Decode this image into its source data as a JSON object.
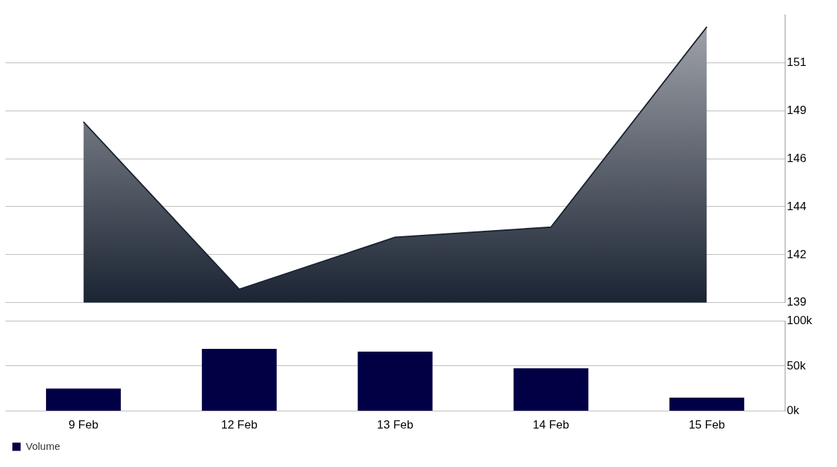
{
  "chart_data": [
    {
      "type": "area",
      "categories": [
        null,
        null,
        null,
        null,
        null
      ],
      "series": [
        {
          "color": "#1b2433",
          "values": [
            148.25,
            140.06,
            142.6,
            143.1,
            152.9
          ]
        }
      ],
      "ylim": [
        139.4,
        153.5
      ],
      "yticks": [
        {
          "value": 139.4,
          "label": "139"
        },
        {
          "value": 141.75,
          "label": "142"
        },
        {
          "value": 144.1,
          "label": "144"
        },
        {
          "value": 146.45,
          "label": "146"
        },
        {
          "value": 148.8,
          "label": "149"
        },
        {
          "value": 151.15,
          "label": "151"
        }
      ],
      "grid": "y",
      "tick_labels": "y"
    },
    {
      "type": "bar",
      "categories": [
        "9 Feb",
        "12 Feb",
        "13 Feb",
        "14 Feb",
        "15 Feb"
      ],
      "series": [
        {
          "name": "Volume",
          "color": "#020045",
          "values": [
            25000,
            69000,
            66000,
            47500,
            15000
          ]
        }
      ],
      "ylim": [
        0,
        100000
      ],
      "yticks": [
        {
          "value": 0,
          "label": "0k"
        },
        {
          "value": 50000,
          "label": "50k"
        },
        {
          "value": 100000,
          "label": "100k"
        }
      ],
      "grid": "y",
      "legend": "bottom left"
    }
  ]
}
